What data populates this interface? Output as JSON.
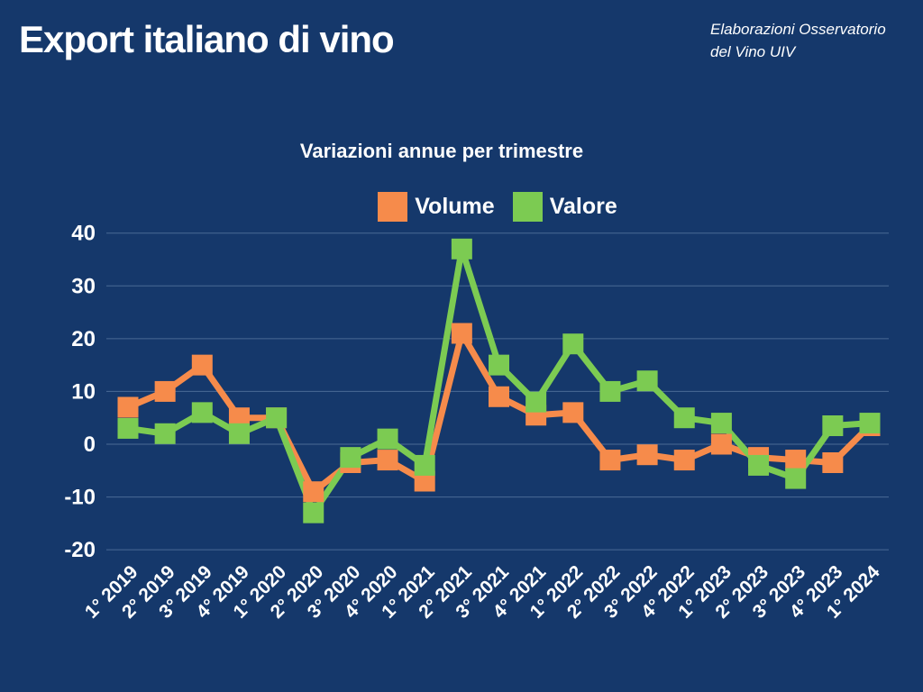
{
  "header": {
    "title": "Export italiano di vino",
    "attribution": [
      "Elaborazioni Osservatorio",
      "del Vino UIV"
    ]
  },
  "colors": {
    "background": "#15386B",
    "text": "#FFFFFF",
    "gridline": "rgba(176,200,230,0.35)",
    "volume": "#F68B4B",
    "valore": "#7CCB52"
  },
  "chart_data": {
    "type": "line",
    "title": "Variazioni annue per trimestre",
    "categories": [
      "1° 2019",
      "2° 2019",
      "3° 2019",
      "4° 2019",
      "1° 2020",
      "2° 2020",
      "3° 2020",
      "4° 2020",
      "1° 2021",
      "2° 2021",
      "3° 2021",
      "4° 2021",
      "1° 2022",
      "2° 2022",
      "3° 2022",
      "4° 2022",
      "1° 2023",
      "2° 2023",
      "3° 2023",
      "4° 2023",
      "1° 2024"
    ],
    "series": [
      {
        "name": "Volume",
        "color": "#F68B4B",
        "values": [
          7,
          10,
          15,
          5,
          5,
          -9,
          -3.5,
          -3,
          -7,
          21,
          9,
          5.5,
          6,
          -3,
          -2,
          -3,
          0,
          -2.5,
          -3,
          -3.5,
          3.5
        ]
      },
      {
        "name": "Valore",
        "color": "#7CCB52",
        "values": [
          3,
          2,
          6,
          2,
          5,
          -13,
          -2.5,
          1,
          -4,
          37,
          15,
          8,
          19,
          10,
          12,
          5,
          4,
          -4,
          -6.5,
          3.5,
          4
        ]
      }
    ],
    "yticks": [
      40,
      30,
      20,
      10,
      0,
      -10,
      -20
    ],
    "ylim": [
      -20,
      40
    ],
    "xlabel": "",
    "ylabel": "",
    "grid": true,
    "legend_position": "top",
    "marker": "square"
  }
}
